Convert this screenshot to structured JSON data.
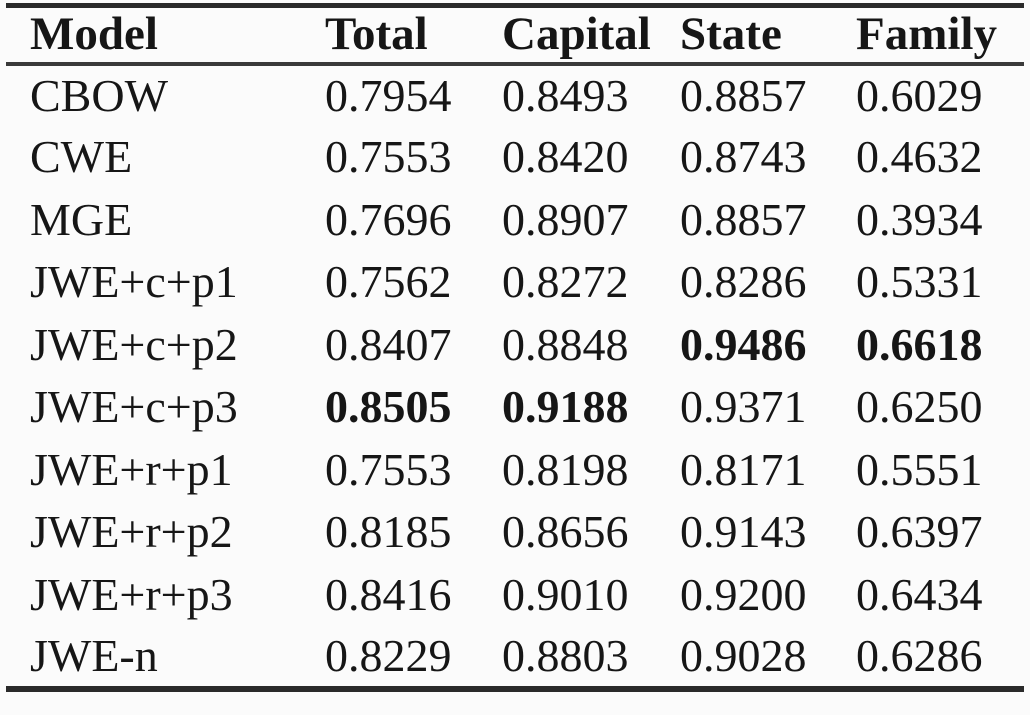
{
  "table": {
    "header": {
      "model": "Model",
      "total": "Total",
      "capital": "Capital",
      "state": "State",
      "family": "Family"
    },
    "rows": [
      {
        "model": "CBOW",
        "values": [
          "0.7954",
          "0.8493",
          "0.8857",
          "0.6029"
        ],
        "bold": [
          false,
          false,
          false,
          false
        ]
      },
      {
        "model": "CWE",
        "values": [
          "0.7553",
          "0.8420",
          "0.8743",
          "0.4632"
        ],
        "bold": [
          false,
          false,
          false,
          false
        ]
      },
      {
        "model": "MGE",
        "values": [
          "0.7696",
          "0.8907",
          "0.8857",
          "0.3934"
        ],
        "bold": [
          false,
          false,
          false,
          false
        ]
      },
      {
        "model": "JWE+c+p1",
        "values": [
          "0.7562",
          "0.8272",
          "0.8286",
          "0.5331"
        ],
        "bold": [
          false,
          false,
          false,
          false
        ]
      },
      {
        "model": "JWE+c+p2",
        "values": [
          "0.8407",
          "0.8848",
          "0.9486",
          "0.6618"
        ],
        "bold": [
          false,
          false,
          true,
          true
        ]
      },
      {
        "model": "JWE+c+p3",
        "values": [
          "0.8505",
          "0.9188",
          "0.9371",
          "0.6250"
        ],
        "bold": [
          true,
          true,
          false,
          false
        ]
      },
      {
        "model": "JWE+r+p1",
        "values": [
          "0.7553",
          "0.8198",
          "0.8171",
          "0.5551"
        ],
        "bold": [
          false,
          false,
          false,
          false
        ]
      },
      {
        "model": "JWE+r+p2",
        "values": [
          "0.8185",
          "0.8656",
          "0.9143",
          "0.6397"
        ],
        "bold": [
          false,
          false,
          false,
          false
        ]
      },
      {
        "model": "JWE+r+p3",
        "values": [
          "0.8416",
          "0.9010",
          "0.9200",
          "0.6434"
        ],
        "bold": [
          false,
          false,
          false,
          false
        ]
      },
      {
        "model": "JWE-n",
        "values": [
          "0.8229",
          "0.8803",
          "0.9028",
          "0.6286"
        ],
        "bold": [
          false,
          false,
          false,
          false
        ]
      }
    ],
    "colors": {
      "text": "#161616",
      "rule": "#2a2a2a",
      "background": "#fbfbfb"
    }
  }
}
